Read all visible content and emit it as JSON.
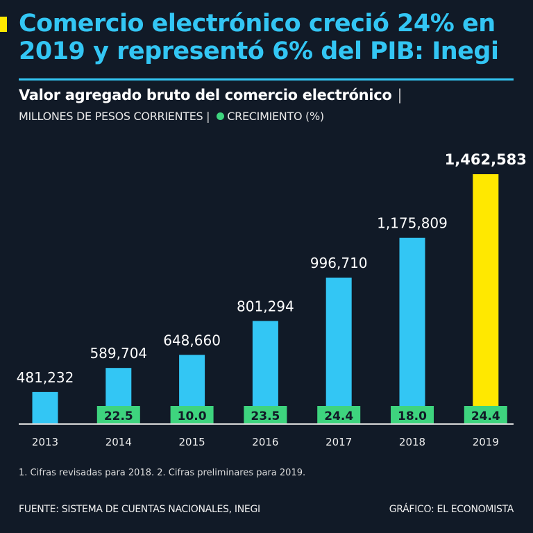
{
  "header": {
    "title": "Comercio electrónico creció 24% en 2019 y representó 6% del PIB: Inegi",
    "subtitle": "Valor agregado bruto del comercio electrónico",
    "subtitle_sep": "|",
    "units": "MILLONES DE PESOS CORRIENTES |",
    "legend_growth": "CRECIMIENTO (%)"
  },
  "chart_data": {
    "type": "bar",
    "categories": [
      "2013",
      "2014",
      "2015",
      "2016",
      "2017",
      "2018",
      "2019"
    ],
    "series": [
      {
        "values": [
          481232,
          589704,
          648660,
          801294,
          996710,
          1175809,
          1462583
        ]
      },
      {
        "name": "CRECIMIENTO (%)",
        "values": [
          null,
          22.5,
          10.0,
          23.5,
          24.4,
          18.0,
          24.4
        ]
      }
    ],
    "value_labels": [
      "481,232",
      "589,704",
      "648,660",
      "801,294",
      "996,710",
      "1,175,809",
      "1,462,583"
    ],
    "growth_labels": [
      "",
      "22.5",
      "10.0",
      "23.5",
      "24.4",
      "18.0",
      "24.4"
    ],
    "ylim": [
      337000,
      1462583
    ],
    "grid": false,
    "colors": {
      "bar": "#33c6f4",
      "highlight": "#ffe800",
      "growth": "#3ed47e"
    }
  },
  "footer": {
    "note": "1. Cifras revisadas para 2018. 2. Cifras preliminares para 2019.",
    "source": "FUENTE: SISTEMA DE CUENTAS NACIONALES, INEGI",
    "credit": "GRÁFICO: EL ECONOMISTA"
  }
}
